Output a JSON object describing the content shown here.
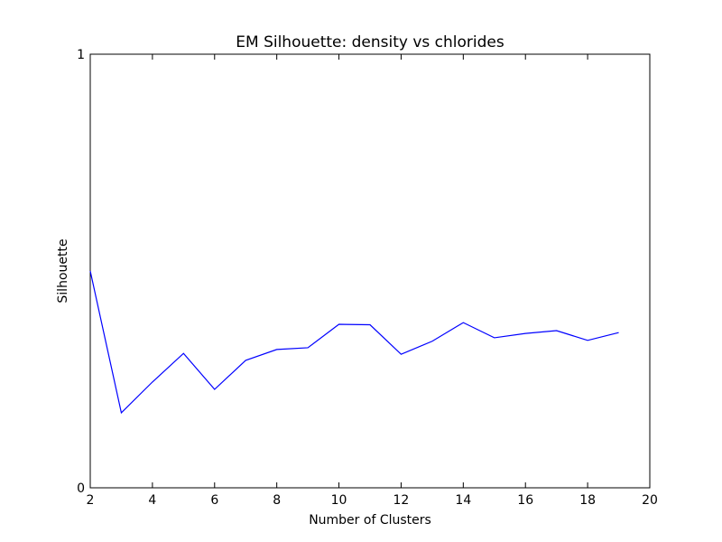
{
  "chart_data": {
    "type": "line",
    "title": "EM Silhouette: density vs chlorides",
    "x_label": "Number of Clusters",
    "y_label": "Silhouette",
    "x": [
      2,
      3,
      4,
      5,
      6,
      7,
      8,
      9,
      10,
      11,
      12,
      13,
      14,
      15,
      16,
      17,
      18,
      19
    ],
    "series": [
      {
        "name": "Silhouette",
        "color": "#0000ff",
        "values": [
          0.5,
          0.173,
          0.244,
          0.31,
          0.227,
          0.294,
          0.319,
          0.323,
          0.377,
          0.376,
          0.308,
          0.338,
          0.381,
          0.346,
          0.356,
          0.3625,
          0.34,
          0.358
        ]
      }
    ],
    "xlim": [
      2,
      20
    ],
    "xticks": [
      2,
      4,
      6,
      8,
      10,
      12,
      14,
      16,
      18,
      20
    ],
    "ylim": [
      0,
      1
    ],
    "yticks": [
      0,
      1
    ],
    "grid": false
  }
}
